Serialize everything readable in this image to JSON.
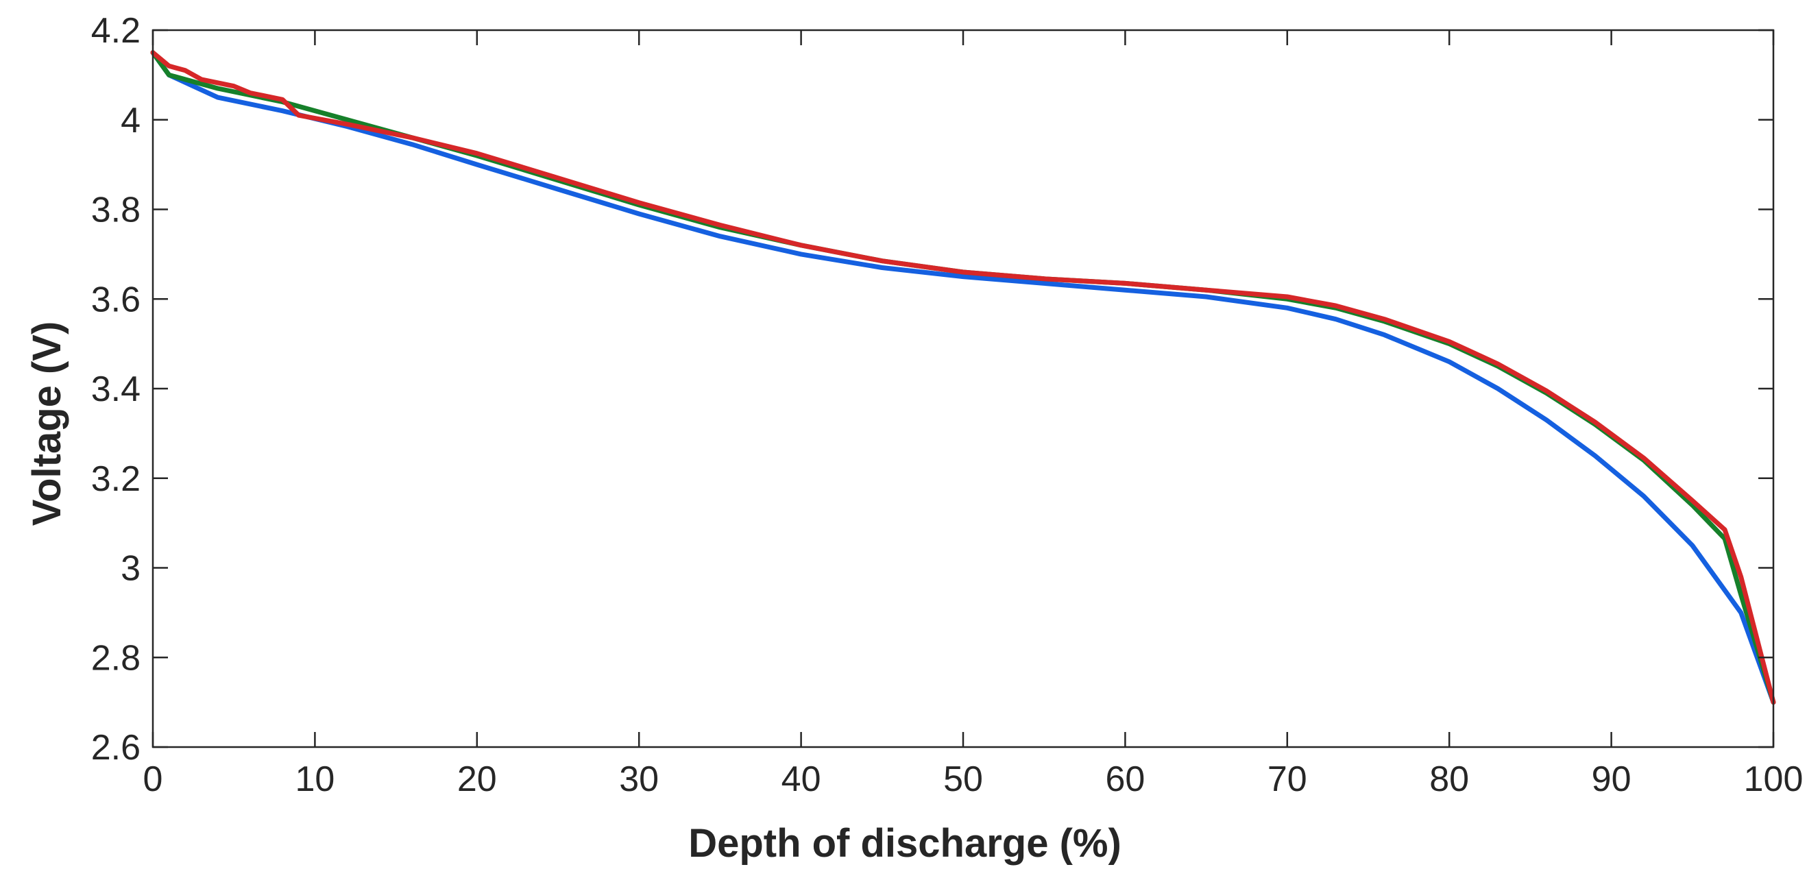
{
  "chart_data": {
    "type": "line",
    "title": "",
    "xlabel": "Depth of discharge (%)",
    "ylabel": "Voltage (V)",
    "xlim": [
      0,
      100
    ],
    "ylim": [
      2.6,
      4.2
    ],
    "xticks": [
      0,
      10,
      20,
      30,
      40,
      50,
      60,
      70,
      80,
      90,
      100
    ],
    "xtick_labels": [
      "0",
      "10",
      "20",
      "30",
      "40",
      "50",
      "60",
      "70",
      "80",
      "90",
      "100"
    ],
    "yticks": [
      2.6,
      2.8,
      3.0,
      3.2,
      3.4,
      3.6,
      3.8,
      4.0,
      4.2
    ],
    "ytick_labels": [
      "2.6",
      "2.8",
      "3",
      "3.2",
      "3.4",
      "3.6",
      "3.8",
      "4",
      "4.2"
    ],
    "grid": false,
    "legend": "none",
    "series": [
      {
        "name": "blue",
        "color": "#1560e0",
        "x": [
          0,
          1,
          4,
          8,
          12,
          16,
          20,
          25,
          30,
          35,
          40,
          45,
          50,
          55,
          60,
          65,
          70,
          73,
          76,
          80,
          83,
          86,
          89,
          92,
          95,
          98,
          100
        ],
        "y": [
          4.15,
          4.1,
          4.05,
          4.02,
          3.985,
          3.945,
          3.9,
          3.845,
          3.79,
          3.74,
          3.7,
          3.67,
          3.65,
          3.635,
          3.62,
          3.605,
          3.58,
          3.555,
          3.52,
          3.46,
          3.4,
          3.33,
          3.25,
          3.16,
          3.05,
          2.9,
          2.7
        ]
      },
      {
        "name": "green",
        "color": "#16802a",
        "x": [
          0,
          1,
          4,
          8,
          12,
          16,
          20,
          25,
          30,
          35,
          40,
          45,
          50,
          55,
          60,
          65,
          70,
          73,
          76,
          80,
          83,
          86,
          89,
          92,
          95,
          97,
          98,
          100
        ],
        "y": [
          4.15,
          4.1,
          4.07,
          4.04,
          4.0,
          3.96,
          3.92,
          3.865,
          3.81,
          3.76,
          3.72,
          3.685,
          3.66,
          3.645,
          3.635,
          3.62,
          3.6,
          3.58,
          3.55,
          3.5,
          3.45,
          3.39,
          3.32,
          3.24,
          3.14,
          3.065,
          2.94,
          2.7
        ]
      },
      {
        "name": "red",
        "color": "#d62728",
        "x": [
          0,
          1,
          2,
          3,
          5,
          6,
          8,
          9,
          12,
          16,
          20,
          25,
          30,
          35,
          40,
          45,
          50,
          55,
          60,
          65,
          70,
          73,
          76,
          80,
          83,
          86,
          89,
          92,
          95,
          97,
          98,
          100
        ],
        "y": [
          4.15,
          4.12,
          4.11,
          4.09,
          4.075,
          4.06,
          4.045,
          4.01,
          3.99,
          3.96,
          3.925,
          3.87,
          3.815,
          3.765,
          3.72,
          3.685,
          3.66,
          3.645,
          3.635,
          3.62,
          3.605,
          3.585,
          3.555,
          3.505,
          3.455,
          3.395,
          3.325,
          3.245,
          3.15,
          3.085,
          2.98,
          2.7
        ]
      }
    ]
  }
}
